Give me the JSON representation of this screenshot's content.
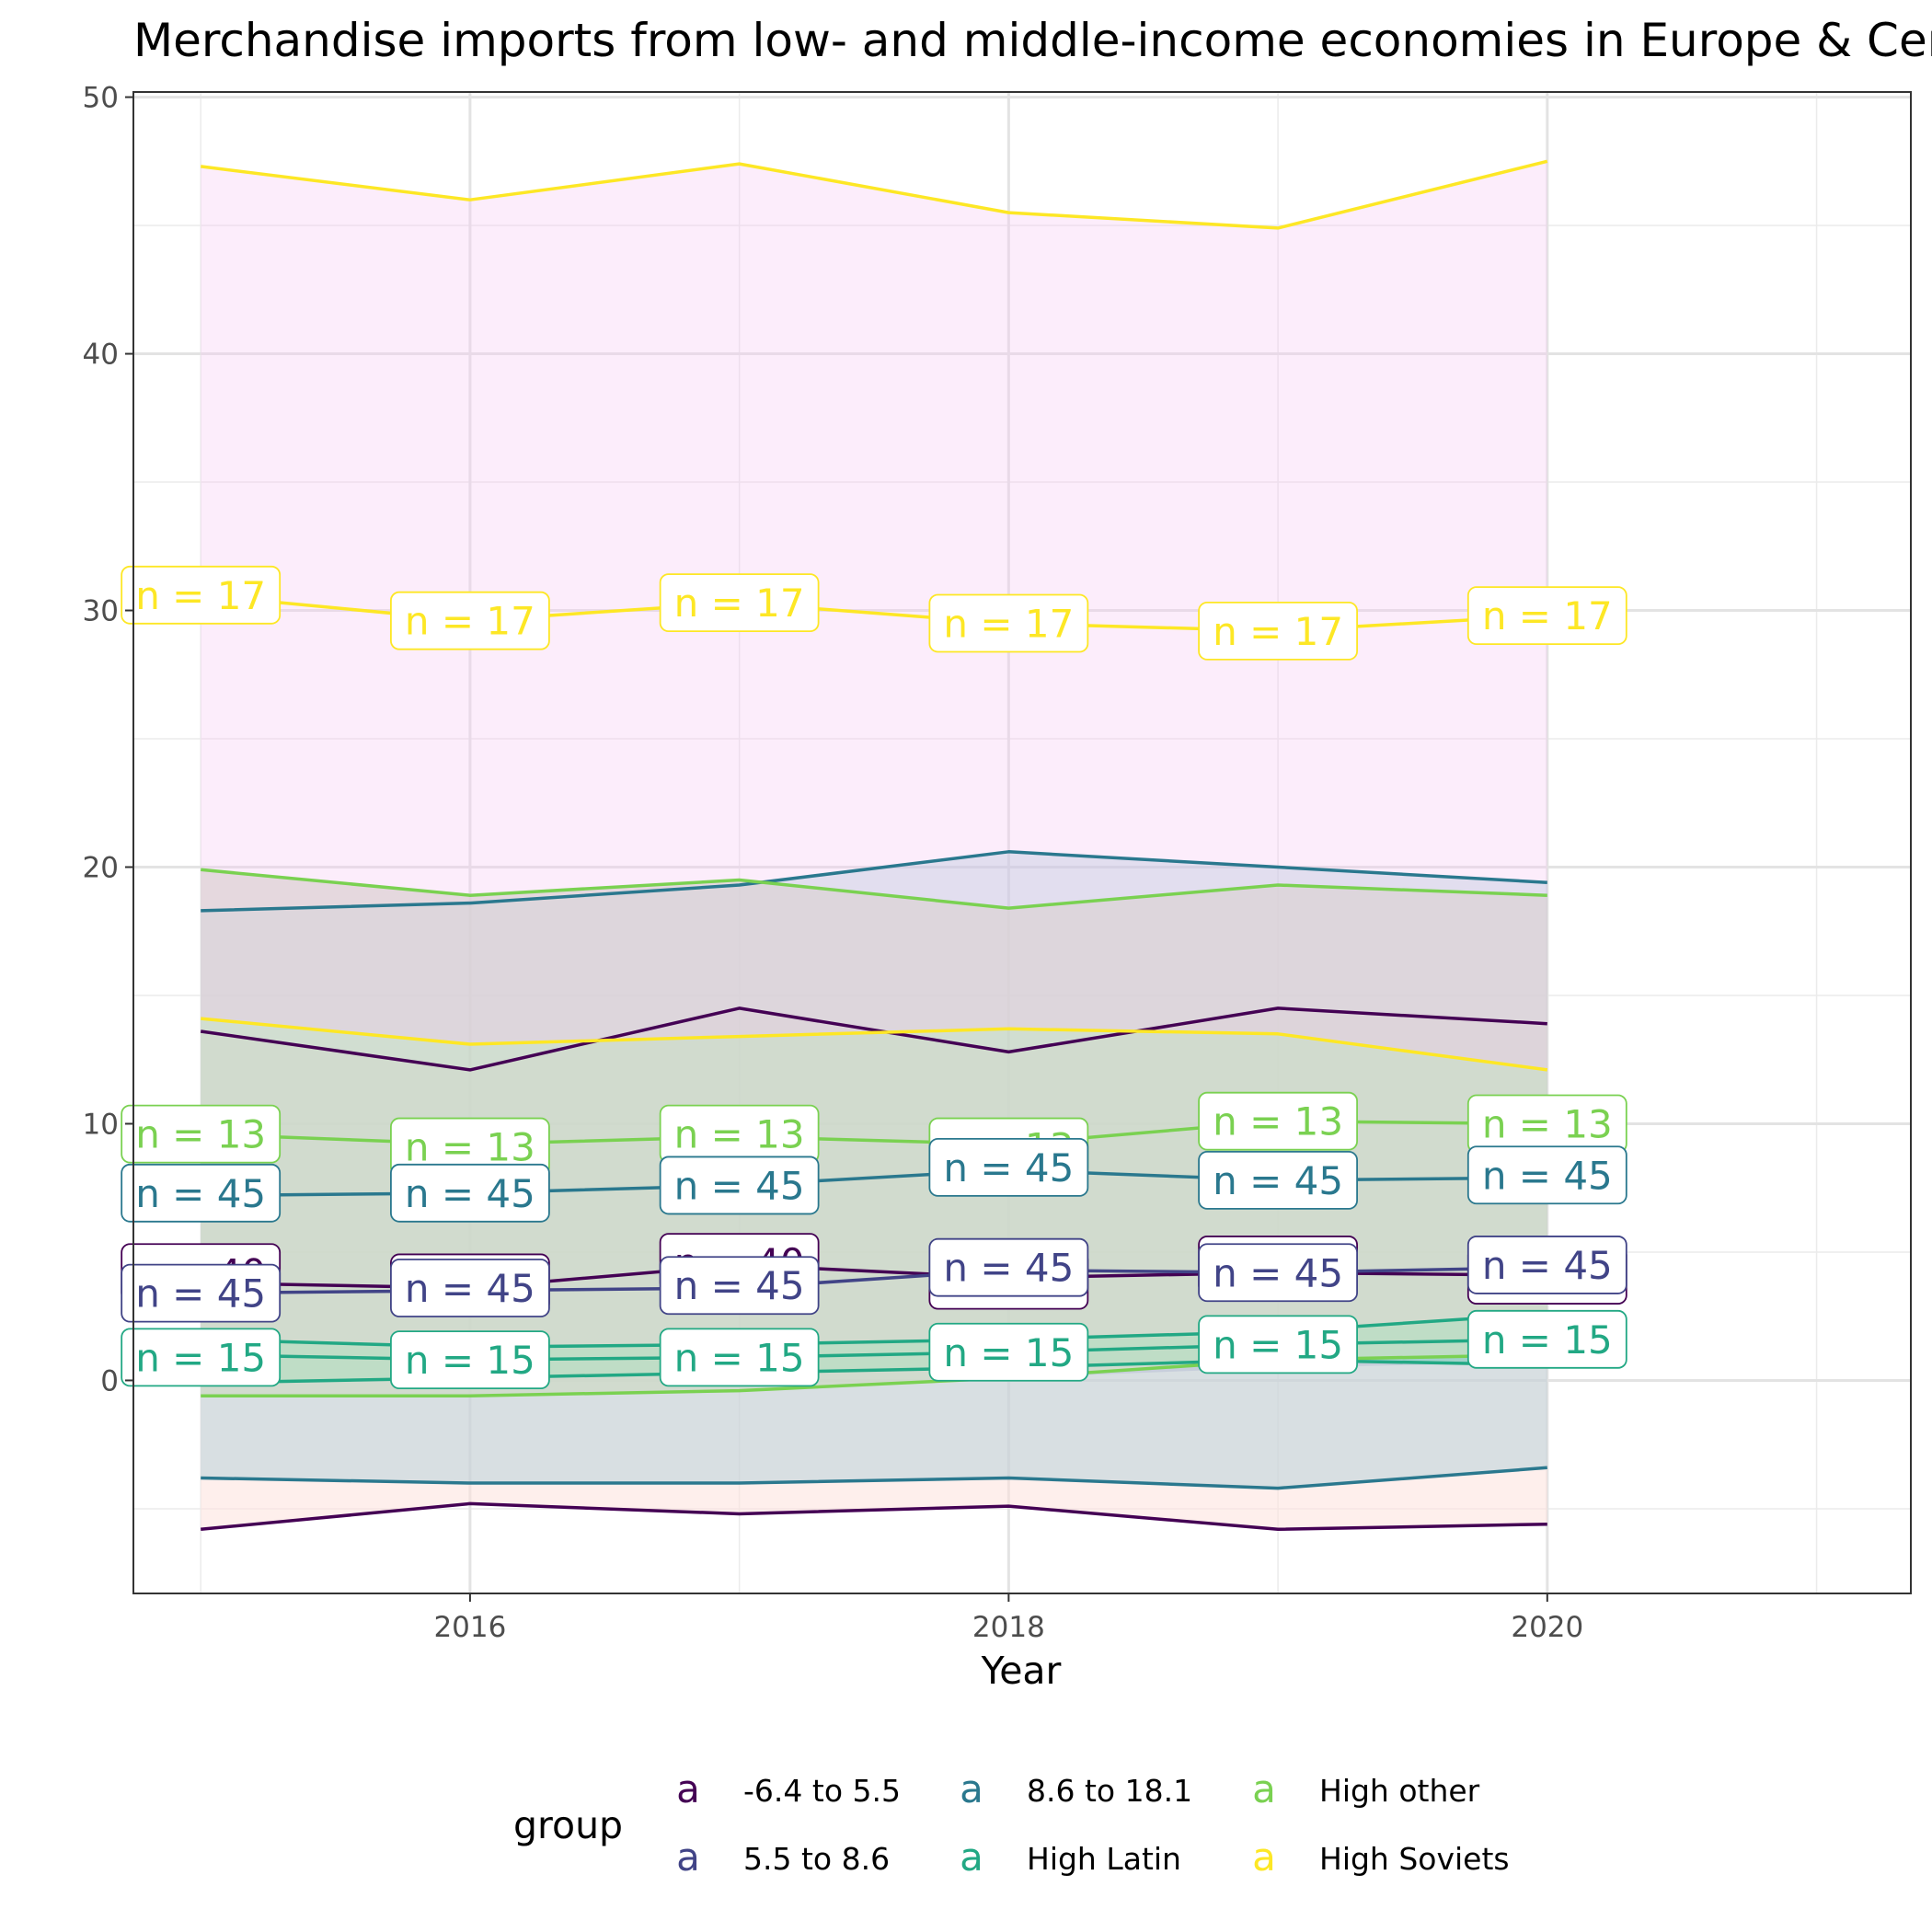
{
  "chart_data": {
    "type": "line",
    "title": "Merchandise imports from low- and middle-income economies in Europe & Central Asia (% of total merchandise imports)",
    "xlabel": "Year",
    "ylabel": "",
    "xlim": [
      2014.75,
      2021.35
    ],
    "ylim": [
      -8.3,
      50.2
    ],
    "xticks": [
      2016,
      2018,
      2020
    ],
    "yticks": [
      0,
      10,
      20,
      30,
      40,
      50
    ],
    "grid": true,
    "legend": {
      "title": "group",
      "position": "bottom",
      "key_glyph": "a",
      "entries": [
        {
          "label": "-6.4 to 5.5",
          "color": "#440154"
        },
        {
          "label": "5.5 to 8.6",
          "color": "#414487"
        },
        {
          "label": "8.6 to 18.1",
          "color": "#2A788E"
        },
        {
          "label": "High Latin",
          "color": "#22A884"
        },
        {
          "label": "High other",
          "color": "#7AD151"
        },
        {
          "label": "High Soviets",
          "color": "#FDE725"
        }
      ]
    },
    "x": [
      2015,
      2016,
      2017,
      2018,
      2019,
      2020
    ],
    "bands": [
      {
        "group": "-6.4 to 5.5",
        "fill": "#FDE2DC",
        "opacity": 0.55,
        "lower": [
          -5.8,
          -4.8,
          -5.2,
          -4.9,
          -5.8,
          -5.6
        ],
        "upper": [
          13.6,
          12.1,
          14.5,
          12.8,
          14.5,
          13.9
        ]
      },
      {
        "group": "5.5 to 8.6",
        "fill": "#B8A7CF",
        "opacity": 0.4,
        "lower": [
          -0.6,
          -0.6,
          -0.4,
          0.1,
          0.5,
          0.7
        ],
        "upper": [
          19.9,
          18.9,
          19.5,
          18.4,
          19.3,
          18.9
        ]
      },
      {
        "group": "8.6 to 18.1",
        "fill": "#9FC7D4",
        "opacity": 0.4,
        "lower": [
          -3.8,
          -4.0,
          -4.0,
          -3.8,
          -4.2,
          -3.4
        ],
        "upper": [
          18.3,
          18.6,
          19.3,
          20.6,
          20.0,
          19.4
        ]
      },
      {
        "group": "High Latin",
        "fill": "#7FD6BC",
        "opacity": 0.55,
        "lower": [
          -0.1,
          0.1,
          0.3,
          0.5,
          0.8,
          0.6
        ],
        "upper": [
          1.6,
          1.3,
          1.4,
          1.6,
          1.9,
          2.6
        ]
      },
      {
        "group": "High other",
        "fill": "#D8E6C2",
        "opacity": 0.55,
        "lower": [
          -0.6,
          -0.6,
          -0.4,
          0.1,
          0.8,
          1.0
        ],
        "upper": [
          19.9,
          18.9,
          19.5,
          18.4,
          19.3,
          18.9
        ]
      },
      {
        "group": "High Soviets",
        "fill": "#F7C8F2",
        "opacity": 0.32,
        "lower": [
          14.1,
          13.1,
          13.4,
          13.7,
          13.5,
          12.1
        ],
        "upper": [
          47.3,
          46.0,
          47.4,
          45.5,
          44.9,
          47.5
        ]
      }
    ],
    "series": [
      {
        "group": "-6.4 to 5.5",
        "color": "#440154",
        "role": "upper",
        "values": [
          13.6,
          12.1,
          14.5,
          12.8,
          14.5,
          13.9
        ]
      },
      {
        "group": "-6.4 to 5.5",
        "color": "#440154",
        "role": "mean",
        "values": [
          3.8,
          3.6,
          4.5,
          4.0,
          4.2,
          4.1
        ]
      },
      {
        "group": "-6.4 to 5.5",
        "color": "#440154",
        "role": "lower",
        "values": [
          -5.8,
          -4.8,
          -5.2,
          -4.9,
          -5.8,
          -5.6
        ]
      },
      {
        "group": "5.5 to 8.6",
        "color": "#414487",
        "role": "mean",
        "values": [
          3.4,
          3.5,
          3.6,
          4.3,
          4.2,
          4.4
        ]
      },
      {
        "group": "8.6 to 18.1",
        "color": "#2A788E",
        "role": "upper",
        "values": [
          18.3,
          18.6,
          19.3,
          20.6,
          20.0,
          19.4
        ]
      },
      {
        "group": "8.6 to 18.1",
        "color": "#2A788E",
        "role": "mean",
        "values": [
          7.2,
          7.3,
          7.6,
          8.2,
          7.8,
          7.9
        ]
      },
      {
        "group": "8.6 to 18.1",
        "color": "#2A788E",
        "role": "lower",
        "values": [
          -3.8,
          -4.0,
          -4.0,
          -3.8,
          -4.2,
          -3.4
        ]
      },
      {
        "group": "High Latin",
        "color": "#22A884",
        "role": "upper",
        "values": [
          1.6,
          1.3,
          1.4,
          1.6,
          1.9,
          2.6
        ]
      },
      {
        "group": "High Latin",
        "color": "#22A884",
        "role": "mean",
        "values": [
          1.0,
          0.8,
          0.9,
          1.1,
          1.4,
          1.6
        ]
      },
      {
        "group": "High Latin",
        "color": "#22A884",
        "role": "lower",
        "values": [
          -0.1,
          0.1,
          0.3,
          0.5,
          0.8,
          0.6
        ]
      },
      {
        "group": "High other",
        "color": "#7AD151",
        "role": "upper",
        "values": [
          19.9,
          18.9,
          19.5,
          18.4,
          19.3,
          18.9
        ]
      },
      {
        "group": "High other",
        "color": "#7AD151",
        "role": "mean",
        "values": [
          9.6,
          9.2,
          9.5,
          9.2,
          10.1,
          10.0
        ]
      },
      {
        "group": "High other",
        "color": "#7AD151",
        "role": "lower",
        "values": [
          -0.6,
          -0.6,
          -0.4,
          0.1,
          0.8,
          1.0
        ]
      },
      {
        "group": "High Soviets",
        "color": "#FDE725",
        "role": "upper",
        "values": [
          47.3,
          46.0,
          47.4,
          45.5,
          44.9,
          47.5
        ]
      },
      {
        "group": "High Soviets",
        "color": "#FDE725",
        "role": "mean",
        "values": [
          30.6,
          29.6,
          30.3,
          29.5,
          29.2,
          29.8
        ]
      },
      {
        "group": "High Soviets",
        "color": "#FDE725",
        "role": "lower",
        "values": [
          14.1,
          13.1,
          13.4,
          13.7,
          13.5,
          12.1
        ]
      }
    ],
    "labels": [
      {
        "group": "-6.4 to 5.5",
        "color": "#440154",
        "text": [
          "n = 40",
          "n = 40",
          "n = 40",
          "n = 40",
          "n = 40",
          "n = 40"
        ],
        "y": [
          4.2,
          3.8,
          4.6,
          3.9,
          4.5,
          4.1
        ]
      },
      {
        "group": "High Soviets",
        "color": "#FDE725",
        "text": [
          "n = 17",
          "n = 17",
          "n = 17",
          "n = 17",
          "n = 17",
          "n = 17"
        ],
        "y": [
          30.6,
          29.6,
          30.3,
          29.5,
          29.2,
          29.8
        ]
      },
      {
        "group": "High other",
        "color": "#7AD151",
        "text": [
          "n = 13",
          "n = 13",
          "n = 13",
          "n = 13",
          "n = 13",
          "n = 13"
        ],
        "y": [
          9.6,
          9.1,
          9.6,
          9.1,
          10.1,
          10.0
        ]
      },
      {
        "group": "8.6 to 18.1",
        "color": "#2A788E",
        "text": [
          "n = 45",
          "n = 45",
          "n = 45",
          "n = 45",
          "n = 45",
          "n = 45"
        ],
        "y": [
          7.3,
          7.3,
          7.6,
          8.3,
          7.8,
          8.0
        ]
      },
      {
        "group": "5.5 to 8.6",
        "color": "#414487",
        "text": [
          "n = 45",
          "n = 45",
          "n = 45",
          "n = 45",
          "n = 45",
          "n = 45"
        ],
        "y": [
          3.4,
          3.6,
          3.7,
          4.4,
          4.2,
          4.5
        ]
      },
      {
        "group": "High Latin",
        "color": "#22A884",
        "text": [
          "n = 15",
          "n = 15",
          "n = 15",
          "n = 15",
          "n = 15",
          "n = 15"
        ],
        "y": [
          0.9,
          0.8,
          0.9,
          1.1,
          1.4,
          1.6
        ]
      }
    ]
  }
}
